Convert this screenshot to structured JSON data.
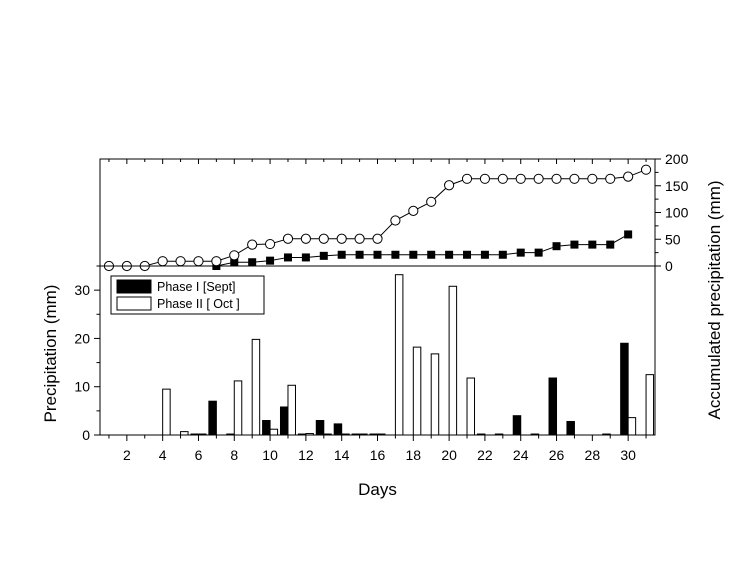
{
  "chart_data": {
    "type": "bar",
    "xlabel": "Days",
    "x_ticks": [
      2,
      4,
      6,
      8,
      10,
      12,
      14,
      16,
      18,
      20,
      22,
      24,
      26,
      28,
      30
    ],
    "xlim": [
      0.5,
      31.5
    ],
    "bottom": {
      "ylabel": "Precipitation (mm)",
      "ylim": [
        0,
        35
      ],
      "y_ticks": [
        0,
        10,
        20,
        30
      ],
      "legend_position": "top-left",
      "series": [
        {
          "name": "Phase I  [Sept]",
          "fill": "#000000",
          "days": [
            1,
            2,
            3,
            4,
            5,
            6,
            7,
            8,
            9,
            10,
            11,
            12,
            13,
            14,
            15,
            16,
            17,
            18,
            19,
            20,
            21,
            22,
            23,
            24,
            25,
            26,
            27,
            28,
            29,
            30,
            31
          ],
          "values": [
            0,
            0,
            0,
            0,
            0,
            0.2,
            7,
            0.2,
            0,
            3,
            5.8,
            0.2,
            3,
            2.3,
            0.2,
            0.2,
            0,
            0,
            0,
            0,
            0,
            0.2,
            0.2,
            4,
            0.2,
            11.8,
            2.8,
            0,
            0.2,
            19,
            0
          ]
        },
        {
          "name": "Phase II [ Oct ]",
          "fill": "#ffffff",
          "days": [
            1,
            2,
            3,
            4,
            5,
            6,
            7,
            8,
            9,
            10,
            11,
            12,
            13,
            14,
            15,
            16,
            17,
            18,
            19,
            20,
            21,
            22,
            23,
            24,
            25,
            26,
            27,
            28,
            29,
            30,
            31
          ],
          "values": [
            0,
            0,
            0,
            9.5,
            0.7,
            0.2,
            0,
            11.2,
            19.8,
            1.2,
            10.3,
            0.3,
            0.2,
            0.2,
            0.2,
            0.2,
            33.2,
            18.2,
            16.8,
            30.8,
            11.8,
            0,
            0,
            0,
            0,
            0,
            0,
            0,
            0,
            3.6,
            12.5
          ]
        }
      ]
    },
    "top": {
      "type": "line",
      "ylabel": "Accumulated precipitation (mm)",
      "ylim": [
        0,
        200
      ],
      "y_ticks": [
        0,
        50,
        100,
        150,
        200
      ],
      "series": [
        {
          "name": "Phase I  [Sept]",
          "marker": "filled-square",
          "days": [
            7,
            8,
            9,
            10,
            11,
            12,
            13,
            14,
            15,
            16,
            17,
            18,
            19,
            20,
            21,
            22,
            23,
            24,
            25,
            26,
            27,
            28,
            29,
            30
          ],
          "values": [
            0,
            7,
            7,
            10,
            16,
            16,
            19,
            21,
            21,
            21,
            21,
            21,
            21,
            21,
            21,
            21,
            21,
            25,
            25,
            37,
            40,
            40,
            40,
            59
          ]
        },
        {
          "name": "Phase II [ Oct ]",
          "marker": "open-circle",
          "days": [
            1,
            2,
            3,
            4,
            5,
            6,
            7,
            8,
            9,
            10,
            11,
            12,
            13,
            14,
            15,
            16,
            17,
            18,
            19,
            20,
            21,
            22,
            23,
            24,
            25,
            26,
            27,
            28,
            29,
            30,
            31
          ],
          "values": [
            0,
            0,
            0,
            9,
            9,
            9,
            9,
            20,
            40,
            41,
            51,
            51,
            51,
            51,
            51,
            51,
            85,
            103,
            120,
            151,
            163,
            163,
            163,
            163,
            163,
            163,
            163,
            163,
            163,
            167,
            180
          ]
        }
      ]
    }
  }
}
